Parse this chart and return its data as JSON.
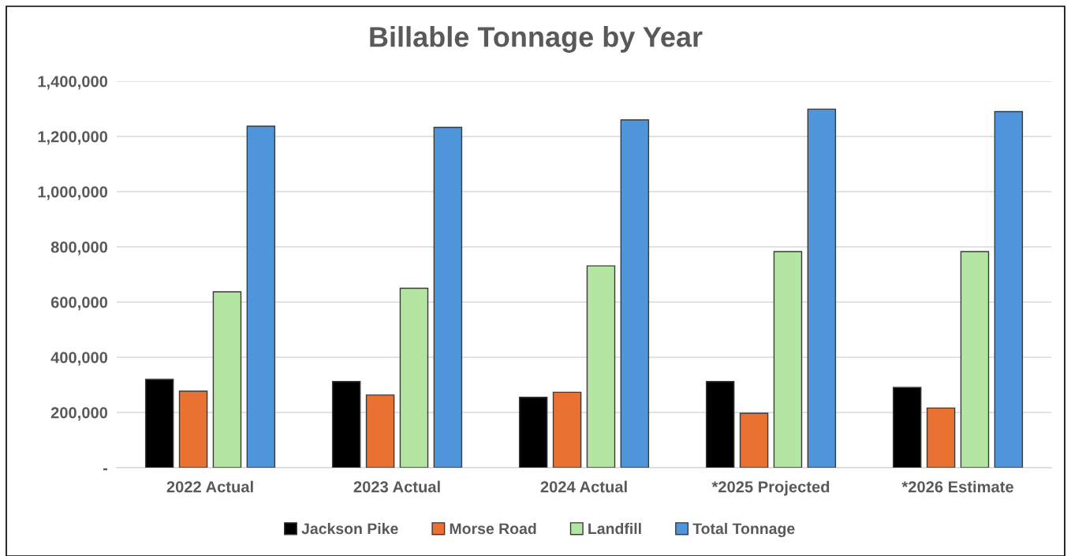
{
  "chart_data": {
    "type": "bar",
    "title": "Billable Tonnage by Year",
    "categories": [
      "2022 Actual",
      "2023 Actual",
      "2024 Actual",
      "*2025 Projected",
      "*2026 Estimate"
    ],
    "series": [
      {
        "name": "Jackson Pike",
        "color": "#000000",
        "values": [
          320000,
          312000,
          255000,
          312000,
          291000
        ]
      },
      {
        "name": "Morse Road",
        "color": "#e97132",
        "values": [
          277000,
          263000,
          273000,
          197000,
          216000
        ]
      },
      {
        "name": "Landfill",
        "color": "#b4e5a2",
        "values": [
          637000,
          650000,
          731000,
          783000,
          783000
        ]
      },
      {
        "name": "Total Tonnage",
        "color": "#4e95d9",
        "values": [
          1237000,
          1233000,
          1260000,
          1299000,
          1290000
        ]
      }
    ],
    "ylim": [
      0,
      1400000
    ],
    "yticks": [
      {
        "value": 0,
        "label": "-"
      },
      {
        "value": 200000,
        "label": "200,000"
      },
      {
        "value": 400000,
        "label": "400,000"
      },
      {
        "value": 600000,
        "label": "600,000"
      },
      {
        "value": 800000,
        "label": "800,000"
      },
      {
        "value": 1000000,
        "label": "1,000,000"
      },
      {
        "value": 1200000,
        "label": "1,200,000"
      },
      {
        "value": 1400000,
        "label": "1,400,000"
      }
    ],
    "grid": "y",
    "legend": "bottom"
  }
}
